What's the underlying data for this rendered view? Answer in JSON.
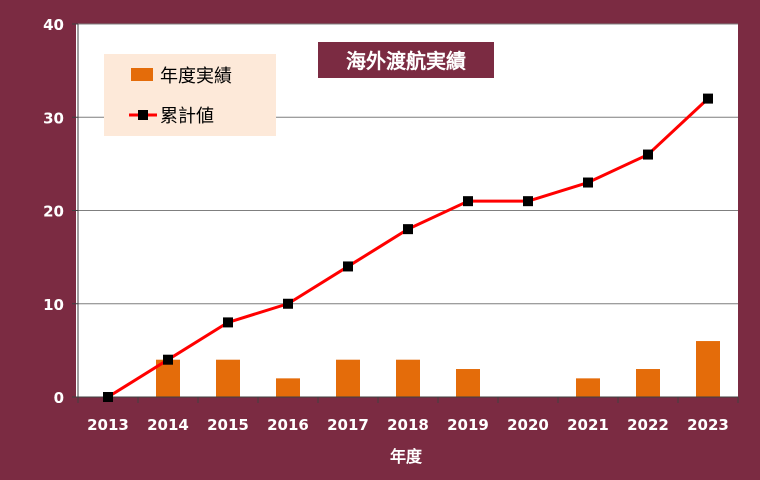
{
  "chart_data": {
    "type": "bar+line",
    "title": "海外渡航実績",
    "xlabel": "年度",
    "ylabel": "",
    "ylim": [
      0,
      40
    ],
    "yticks": [
      0,
      10,
      20,
      30,
      40
    ],
    "categories": [
      "2013",
      "2014",
      "2015",
      "2016",
      "2017",
      "2018",
      "2019",
      "2020",
      "2021",
      "2022",
      "2023"
    ],
    "series": [
      {
        "name": "年度実績",
        "kind": "bar",
        "values": [
          0,
          4,
          4,
          2,
          4,
          4,
          3,
          0,
          2,
          3,
          6
        ]
      },
      {
        "name": "累計値",
        "kind": "line",
        "values": [
          0,
          4,
          8,
          10,
          14,
          18,
          21,
          21,
          23,
          26,
          32
        ]
      }
    ],
    "grid": true,
    "legend_position": "top-left",
    "colors": {
      "background": "#7b2b42",
      "plot_area": "#ffffff",
      "bar": "#e46c0a",
      "line": "#ff0000",
      "marker": "#000000",
      "legend_bg": "#fde9d9",
      "title_bg": "#7b2b42"
    }
  }
}
